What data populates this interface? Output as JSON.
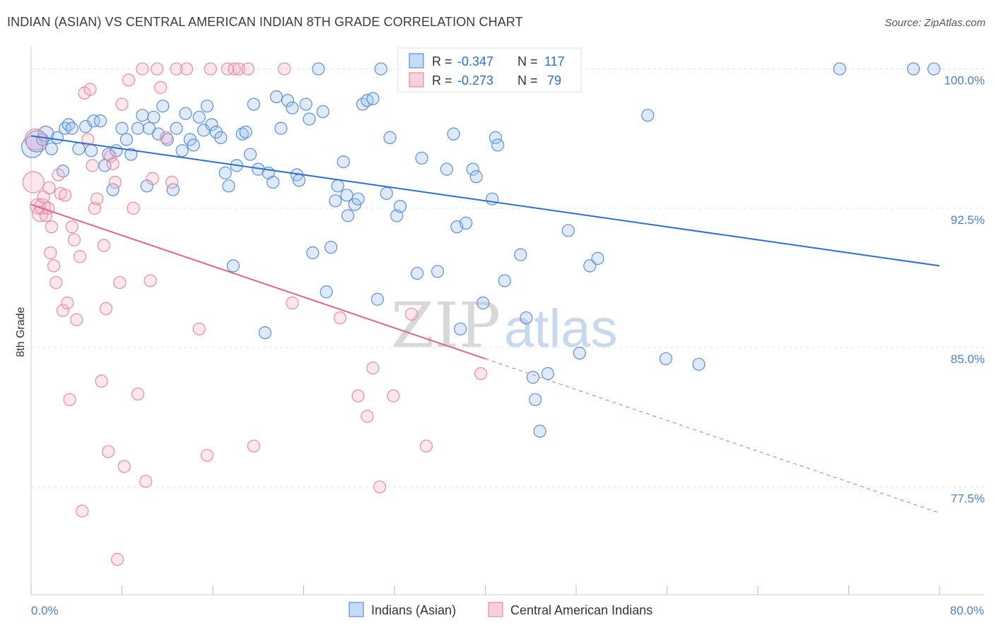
{
  "title": "INDIAN (ASIAN) VS CENTRAL AMERICAN INDIAN 8TH GRADE CORRELATION CHART",
  "source": "Source: ZipAtlas.com",
  "watermark": {
    "zip": "ZIP",
    "atlas": "atlas"
  },
  "colors": {
    "blue": "#5b8fd6",
    "blue_fill": "rgba(160,196,240,0.35)",
    "blue_line": "#2b6fcf",
    "pink": "#e88aa6",
    "pink_fill": "rgba(244,176,196,0.30)",
    "pink_line": "#e0648f",
    "axis_text": "#4a7fd0",
    "grid": "#dddddd"
  },
  "legend": {
    "row1": {
      "r_label": "R = ",
      "r_value": "-0.347",
      "n_label": "N = ",
      "n_value": "117"
    },
    "row2": {
      "r_label": "R = ",
      "r_value": "-0.273",
      "n_label": "N = ",
      "n_value": "79"
    }
  },
  "chart_data": {
    "type": "scatter",
    "xlabel": "",
    "ylabel": "8th Grade",
    "xlim": [
      0.0,
      80.0
    ],
    "ylim": [
      71.7,
      101.2
    ],
    "x_tick_labels": [
      "0.0%",
      "80.0%"
    ],
    "y_ticks": [
      77.5,
      85.0,
      92.5,
      100.0
    ],
    "y_tick_labels": [
      "77.5%",
      "85.0%",
      "92.5%",
      "100.0%"
    ],
    "grid": true,
    "legend_position": "bottom",
    "series": [
      {
        "name": "Indians (Asian)",
        "color": "#5b8fd6",
        "trend": {
          "x": [
            0.0,
            80.0
          ],
          "y": [
            96.4,
            89.4
          ]
        },
        "points": [
          [
            0.1,
            95.8
          ],
          [
            0.5,
            96.1
          ],
          [
            1.0,
            96.2
          ],
          [
            1.3,
            96.5
          ],
          [
            1.8,
            95.7
          ],
          [
            2.3,
            96.3
          ],
          [
            2.8,
            94.5
          ],
          [
            3.0,
            96.8
          ],
          [
            3.3,
            97.0
          ],
          [
            3.6,
            96.8
          ],
          [
            4.2,
            95.7
          ],
          [
            4.8,
            96.9
          ],
          [
            5.3,
            95.6
          ],
          [
            5.5,
            97.2
          ],
          [
            6.1,
            97.2
          ],
          [
            6.5,
            94.8
          ],
          [
            6.8,
            95.4
          ],
          [
            7.2,
            93.5
          ],
          [
            7.5,
            95.6
          ],
          [
            8.0,
            96.8
          ],
          [
            8.4,
            96.2
          ],
          [
            8.8,
            95.4
          ],
          [
            9.4,
            96.8
          ],
          [
            9.8,
            97.5
          ],
          [
            10.2,
            93.7
          ],
          [
            10.4,
            96.8
          ],
          [
            10.8,
            97.4
          ],
          [
            11.2,
            96.5
          ],
          [
            11.6,
            98.0
          ],
          [
            12.0,
            96.2
          ],
          [
            12.5,
            93.5
          ],
          [
            12.8,
            96.8
          ],
          [
            13.3,
            95.6
          ],
          [
            13.6,
            97.6
          ],
          [
            14.0,
            96.2
          ],
          [
            14.3,
            95.9
          ],
          [
            14.8,
            97.4
          ],
          [
            15.2,
            96.7
          ],
          [
            15.5,
            98.0
          ],
          [
            15.9,
            97.0
          ],
          [
            16.3,
            96.6
          ],
          [
            16.7,
            96.3
          ],
          [
            17.1,
            94.4
          ],
          [
            17.4,
            93.7
          ],
          [
            17.8,
            89.4
          ],
          [
            18.1,
            94.8
          ],
          [
            18.6,
            96.5
          ],
          [
            18.9,
            96.6
          ],
          [
            19.3,
            95.4
          ],
          [
            19.6,
            98.1
          ],
          [
            20.0,
            94.6
          ],
          [
            20.6,
            85.8
          ],
          [
            20.9,
            94.4
          ],
          [
            21.3,
            93.9
          ],
          [
            21.6,
            98.5
          ],
          [
            22.0,
            96.8
          ],
          [
            22.6,
            98.3
          ],
          [
            23.0,
            97.9
          ],
          [
            23.4,
            94.3
          ],
          [
            23.6,
            94.0
          ],
          [
            24.2,
            98.1
          ],
          [
            24.5,
            97.3
          ],
          [
            24.8,
            90.1
          ],
          [
            25.3,
            100.0
          ],
          [
            25.7,
            97.7
          ],
          [
            26.0,
            88.0
          ],
          [
            26.4,
            90.4
          ],
          [
            26.8,
            92.9
          ],
          [
            27.0,
            93.7
          ],
          [
            27.5,
            95.0
          ],
          [
            27.8,
            93.2
          ],
          [
            27.9,
            92.1
          ],
          [
            28.5,
            92.7
          ],
          [
            28.8,
            93.0
          ],
          [
            29.2,
            98.1
          ],
          [
            29.6,
            98.3
          ],
          [
            30.1,
            98.4
          ],
          [
            30.5,
            87.6
          ],
          [
            30.8,
            100.0
          ],
          [
            31.3,
            93.3
          ],
          [
            31.6,
            96.3
          ],
          [
            32.2,
            92.1
          ],
          [
            32.5,
            92.6
          ],
          [
            34.0,
            89.0
          ],
          [
            34.4,
            95.2
          ],
          [
            35.8,
            89.1
          ],
          [
            36.6,
            94.6
          ],
          [
            37.2,
            96.5
          ],
          [
            37.5,
            91.5
          ],
          [
            37.8,
            86.0
          ],
          [
            38.3,
            91.7
          ],
          [
            38.9,
            94.6
          ],
          [
            39.2,
            94.2
          ],
          [
            39.8,
            87.4
          ],
          [
            40.6,
            93.0
          ],
          [
            40.9,
            96.3
          ],
          [
            41.1,
            95.9
          ],
          [
            41.7,
            88.6
          ],
          [
            43.1,
            90.0
          ],
          [
            43.6,
            86.6
          ],
          [
            44.2,
            83.4
          ],
          [
            44.4,
            82.2
          ],
          [
            44.8,
            80.5
          ],
          [
            45.5,
            83.6
          ],
          [
            47.3,
            91.3
          ],
          [
            47.9,
            100.0
          ],
          [
            48.3,
            84.7
          ],
          [
            49.2,
            89.4
          ],
          [
            49.9,
            89.8
          ],
          [
            54.3,
            97.5
          ],
          [
            55.9,
            84.4
          ],
          [
            58.8,
            84.1
          ],
          [
            71.2,
            100.0
          ],
          [
            77.7,
            100.0
          ],
          [
            79.5,
            100.0
          ]
        ],
        "sizes": [
          [
            0.1,
            95.8,
            "l"
          ],
          [
            0.5,
            96.1,
            "l"
          ],
          [
            1.3,
            96.5,
            "m"
          ]
        ]
      },
      {
        "name": "Central American Indians",
        "color": "#e88aa6",
        "trend": {
          "x": [
            0.0,
            40.0
          ],
          "y": [
            92.7,
            84.4
          ]
        },
        "trend_dashed": {
          "x": [
            40.0,
            80.0
          ],
          "y": [
            84.4,
            76.1
          ]
        },
        "points": [
          [
            0.2,
            93.9
          ],
          [
            0.4,
            96.2
          ],
          [
            0.6,
            92.6
          ],
          [
            0.8,
            92.2
          ],
          [
            1.0,
            92.6
          ],
          [
            1.1,
            93.1
          ],
          [
            1.3,
            92.1
          ],
          [
            1.5,
            92.5
          ],
          [
            1.6,
            93.6
          ],
          [
            1.7,
            90.1
          ],
          [
            1.8,
            91.5
          ],
          [
            2.0,
            89.4
          ],
          [
            2.2,
            88.5
          ],
          [
            2.4,
            94.3
          ],
          [
            2.6,
            93.3
          ],
          [
            2.8,
            87.0
          ],
          [
            3.0,
            93.2
          ],
          [
            3.2,
            87.4
          ],
          [
            3.4,
            82.2
          ],
          [
            3.6,
            91.5
          ],
          [
            3.8,
            90.8
          ],
          [
            4.0,
            86.5
          ],
          [
            4.3,
            89.9
          ],
          [
            4.5,
            76.2
          ],
          [
            4.7,
            98.7
          ],
          [
            5.0,
            96.2
          ],
          [
            5.2,
            98.9
          ],
          [
            5.4,
            94.8
          ],
          [
            5.6,
            92.5
          ],
          [
            5.8,
            93.0
          ],
          [
            6.2,
            83.2
          ],
          [
            6.4,
            90.5
          ],
          [
            6.6,
            87.1
          ],
          [
            6.8,
            79.4
          ],
          [
            7.0,
            95.3
          ],
          [
            7.2,
            94.9
          ],
          [
            7.4,
            93.9
          ],
          [
            7.6,
            73.6
          ],
          [
            7.8,
            88.5
          ],
          [
            8.0,
            98.1
          ],
          [
            8.2,
            78.6
          ],
          [
            8.6,
            99.4
          ],
          [
            9.0,
            92.5
          ],
          [
            9.4,
            82.5
          ],
          [
            9.8,
            100.0
          ],
          [
            10.1,
            77.8
          ],
          [
            10.5,
            88.6
          ],
          [
            10.7,
            94.1
          ],
          [
            11.1,
            100.0
          ],
          [
            11.4,
            99.0
          ],
          [
            11.9,
            96.3
          ],
          [
            12.4,
            93.9
          ],
          [
            12.8,
            100.0
          ],
          [
            13.7,
            100.0
          ],
          [
            14.8,
            86.0
          ],
          [
            15.5,
            79.2
          ],
          [
            15.8,
            100.0
          ],
          [
            17.3,
            100.0
          ],
          [
            17.9,
            100.0
          ],
          [
            18.3,
            100.0
          ],
          [
            19.1,
            100.0
          ],
          [
            19.6,
            79.7
          ],
          [
            22.3,
            100.0
          ],
          [
            23.0,
            87.4
          ],
          [
            27.2,
            86.6
          ],
          [
            28.8,
            82.4
          ],
          [
            29.6,
            81.3
          ],
          [
            30.1,
            83.9
          ],
          [
            30.7,
            77.5
          ],
          [
            31.9,
            82.4
          ],
          [
            33.5,
            86.8
          ],
          [
            34.8,
            79.7
          ],
          [
            39.6,
            83.6
          ]
        ],
        "sizes": [
          [
            0.2,
            93.9,
            "l"
          ],
          [
            0.4,
            96.2,
            "l"
          ],
          [
            0.6,
            92.6,
            "m"
          ],
          [
            0.8,
            92.2,
            "m"
          ],
          [
            1.0,
            92.6,
            "m"
          ]
        ]
      }
    ]
  }
}
